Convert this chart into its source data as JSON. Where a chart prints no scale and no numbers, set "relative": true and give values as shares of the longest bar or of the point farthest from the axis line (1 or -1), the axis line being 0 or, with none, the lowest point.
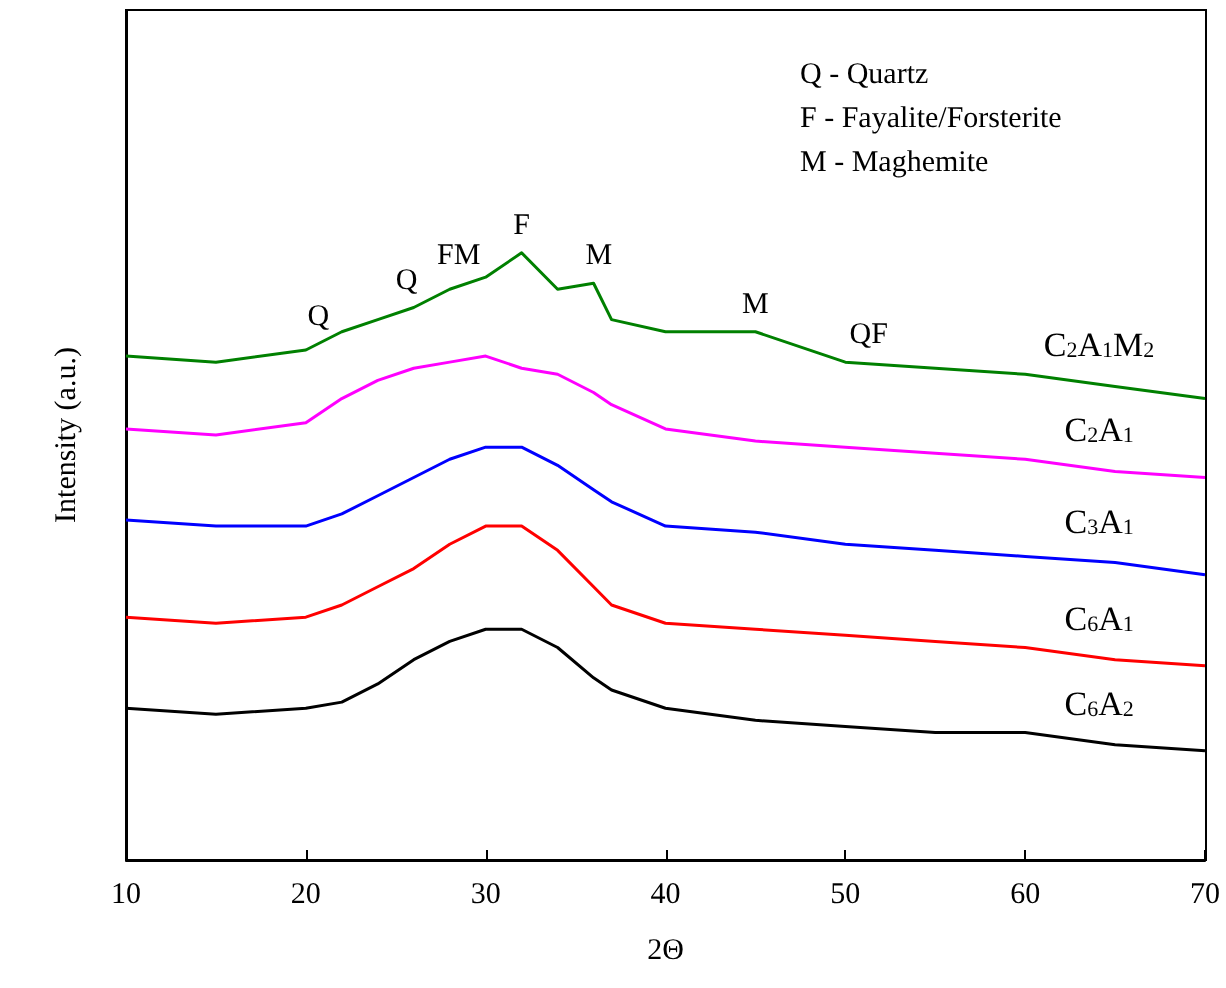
{
  "chart_data": {
    "type": "line",
    "relative": true,
    "xlabel": "2Θ",
    "ylabel": "Intensity (a.u.)",
    "x": [
      10,
      15,
      20,
      22,
      24,
      26,
      28,
      30,
      32,
      34,
      36,
      37,
      40,
      45,
      50,
      55,
      60,
      65,
      70
    ],
    "xlim": [
      10,
      70
    ],
    "xticks": [
      10,
      20,
      30,
      40,
      50,
      60,
      70
    ],
    "grid": false,
    "marker": "none",
    "line_style": "solid",
    "series": [
      {
        "name": "C$_{2}$A$_{1}$M$_{2}$",
        "color": "#008000",
        "values": [
          0.83,
          0.82,
          0.84,
          0.87,
          0.89,
          0.91,
          0.94,
          0.96,
          1.0,
          0.94,
          0.95,
          0.89,
          0.87,
          0.87,
          0.82,
          0.81,
          0.8,
          0.78,
          0.76
        ]
      },
      {
        "name": "C$_{2}$A$_{1}$",
        "color": "#ff00ff",
        "values": [
          0.71,
          0.7,
          0.72,
          0.76,
          0.79,
          0.81,
          0.82,
          0.83,
          0.81,
          0.8,
          0.77,
          0.75,
          0.71,
          0.69,
          0.68,
          0.67,
          0.66,
          0.64,
          0.63
        ]
      },
      {
        "name": "C$_{3}$A$_{1}$",
        "color": "#0000ff",
        "values": [
          0.56,
          0.55,
          0.55,
          0.57,
          0.6,
          0.63,
          0.66,
          0.68,
          0.68,
          0.65,
          0.61,
          0.59,
          0.55,
          0.54,
          0.52,
          0.51,
          0.5,
          0.49,
          0.47
        ]
      },
      {
        "name": "C$_{6}$A$_{1}$",
        "color": "#ff0000",
        "values": [
          0.4,
          0.39,
          0.4,
          0.42,
          0.45,
          0.48,
          0.52,
          0.55,
          0.55,
          0.51,
          0.45,
          0.42,
          0.39,
          0.38,
          0.37,
          0.36,
          0.35,
          0.33,
          0.32
        ]
      },
      {
        "name": "C$_{6}$A$_{2}$",
        "color": "#000000",
        "values": [
          0.25,
          0.24,
          0.25,
          0.26,
          0.29,
          0.33,
          0.36,
          0.38,
          0.38,
          0.35,
          0.3,
          0.28,
          0.25,
          0.23,
          0.22,
          0.21,
          0.21,
          0.19,
          0.18
        ]
      }
    ],
    "annotations": [
      "Q - Quartz",
      "F - Fayalite/Forsterite",
      "M - Maghemite",
      {
        "text": "Q",
        "x": 20.7,
        "y": 0.85
      },
      {
        "text": "Q",
        "x": 25.6,
        "y": 0.91
      },
      {
        "text": "FM",
        "x": 28.5,
        "y": 0.95
      },
      {
        "text": "F",
        "x": 32,
        "y": 1.0
      },
      {
        "text": "M",
        "x": 36.3,
        "y": 0.95
      },
      {
        "text": "M",
        "x": 45,
        "y": 0.87
      },
      {
        "text": "QF",
        "x": 51.3,
        "y": 0.82
      }
    ]
  }
}
